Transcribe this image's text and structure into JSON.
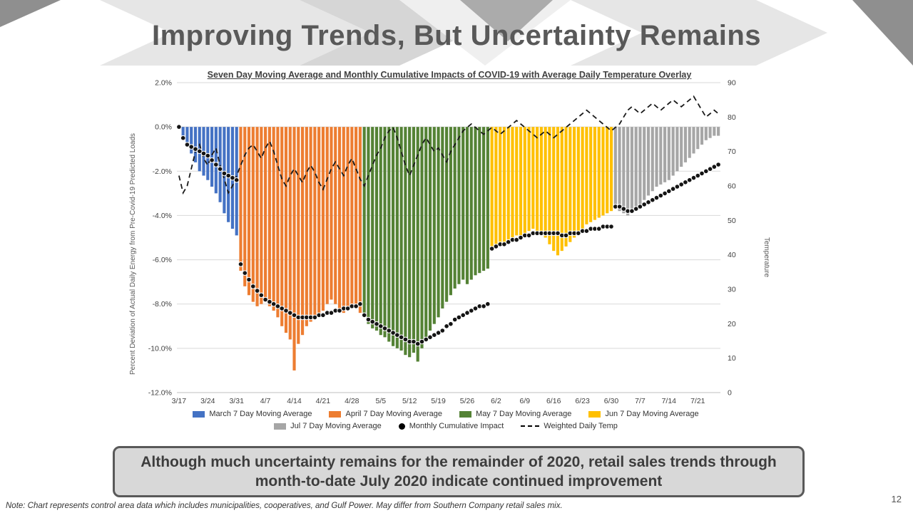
{
  "slide": {
    "title": "Improving Trends, But Uncertainty Remains",
    "callout": "Although much uncertainty remains for the remainder of 2020, retail sales trends through month-to-date July 2020 indicate continued improvement",
    "footnote": "Note: Chart represents control area data which includes municipalities, cooperatives, and Gulf Power.  May differ from Southern Company retail sales mix.",
    "page_number": "12"
  },
  "chart_data": {
    "type": "bar",
    "title": "Seven Day Moving Average and Monthly Cumulative Impacts of COVID-19 with Average Daily Temperature Overlay",
    "ylabel_left": "Percent Deviation of Actual Daily Energy from Pre-Covid-19 Predicted Loads",
    "ylabel_right": "Temperature",
    "ylim_left": [
      -12,
      2
    ],
    "ylim_right": [
      0,
      90
    ],
    "grid": true,
    "legend_position": "bottom",
    "y_ticks_left": [
      "2.0%",
      "0.0%",
      "-2.0%",
      "-4.0%",
      "-6.0%",
      "-8.0%",
      "-10.0%",
      "-12.0%"
    ],
    "y_ticks_left_values": [
      2,
      0,
      -2,
      -4,
      -6,
      -8,
      -10,
      -12
    ],
    "y_ticks_right_values": [
      90,
      80,
      70,
      60,
      50,
      40,
      30,
      20,
      10,
      0
    ],
    "x_tick_labels": [
      "3/17",
      "3/24",
      "3/31",
      "4/7",
      "4/14",
      "4/21",
      "4/28",
      "5/5",
      "5/12",
      "5/19",
      "5/26",
      "6/2",
      "6/9",
      "6/16",
      "6/23",
      "6/30",
      "7/7",
      "7/14",
      "7/21"
    ],
    "x_tick_interval_days": 7,
    "month_colors": {
      "3": "#4472C4",
      "4": "#ED7D31",
      "5": "#548235",
      "6": "#FFC000",
      "7": "#A6A6A6"
    },
    "legend": [
      {
        "label": "March 7 Day Moving Average",
        "type": "bar",
        "color": "#4472C4"
      },
      {
        "label": "April 7 Day Moving Average",
        "type": "bar",
        "color": "#ED7D31"
      },
      {
        "label": "May 7 Day Moving Average",
        "type": "bar",
        "color": "#548235"
      },
      {
        "label": "Jun 7 Day Moving Average",
        "type": "bar",
        "color": "#FFC000"
      },
      {
        "label": "Jul 7 Day Moving Average",
        "type": "bar",
        "color": "#A6A6A6"
      },
      {
        "label": "Monthly Cumulative Impact",
        "type": "dot",
        "color": "#000000"
      },
      {
        "label": "Weighted Daily Temp",
        "type": "dashed-line",
        "color": "#000000"
      }
    ],
    "dates": [
      "3/17",
      "3/18",
      "3/19",
      "3/20",
      "3/21",
      "3/22",
      "3/23",
      "3/24",
      "3/25",
      "3/26",
      "3/27",
      "3/28",
      "3/29",
      "3/30",
      "3/31",
      "4/1",
      "4/2",
      "4/3",
      "4/4",
      "4/5",
      "4/6",
      "4/7",
      "4/8",
      "4/9",
      "4/10",
      "4/11",
      "4/12",
      "4/13",
      "4/14",
      "4/15",
      "4/16",
      "4/17",
      "4/18",
      "4/19",
      "4/20",
      "4/21",
      "4/22",
      "4/23",
      "4/24",
      "4/25",
      "4/26",
      "4/27",
      "4/28",
      "4/29",
      "4/30",
      "5/1",
      "5/2",
      "5/3",
      "5/4",
      "5/5",
      "5/6",
      "5/7",
      "5/8",
      "5/9",
      "5/10",
      "5/11",
      "5/12",
      "5/13",
      "5/14",
      "5/15",
      "5/16",
      "5/17",
      "5/18",
      "5/19",
      "5/20",
      "5/21",
      "5/22",
      "5/23",
      "5/24",
      "5/25",
      "5/26",
      "5/27",
      "5/28",
      "5/29",
      "5/30",
      "5/31",
      "6/1",
      "6/2",
      "6/3",
      "6/4",
      "6/5",
      "6/6",
      "6/7",
      "6/8",
      "6/9",
      "6/10",
      "6/11",
      "6/12",
      "6/13",
      "6/14",
      "6/15",
      "6/16",
      "6/17",
      "6/18",
      "6/19",
      "6/20",
      "6/21",
      "6/22",
      "6/23",
      "6/24",
      "6/25",
      "6/26",
      "6/27",
      "6/28",
      "6/29",
      "6/30",
      "7/1",
      "7/2",
      "7/3",
      "7/4",
      "7/5",
      "7/6",
      "7/7",
      "7/8",
      "7/9",
      "7/10",
      "7/11",
      "7/12",
      "7/13",
      "7/14",
      "7/15",
      "7/16",
      "7/17",
      "7/18",
      "7/19",
      "7/20",
      "7/21",
      "7/22",
      "7/23",
      "7/24",
      "7/25",
      "7/26"
    ],
    "bar_values": [
      -0.1,
      -0.4,
      -0.8,
      -1.2,
      -1.6,
      -2.0,
      -2.2,
      -2.4,
      -2.7,
      -3.0,
      -3.4,
      -3.9,
      -4.3,
      -4.6,
      -4.9,
      -6.5,
      -7.2,
      -7.6,
      -7.9,
      -8.1,
      -8.0,
      -7.9,
      -8.1,
      -8.3,
      -8.6,
      -9.0,
      -9.3,
      -9.6,
      -11.0,
      -9.8,
      -9.4,
      -9.0,
      -8.8,
      -8.6,
      -8.5,
      -8.3,
      -8.0,
      -7.8,
      -8.0,
      -8.2,
      -8.4,
      -8.3,
      -8.1,
      -8.2,
      -8.4,
      -8.6,
      -8.9,
      -9.1,
      -9.2,
      -9.4,
      -9.5,
      -9.7,
      -9.9,
      -10.0,
      -10.1,
      -10.3,
      -10.4,
      -10.2,
      -10.6,
      -10.0,
      -9.6,
      -9.2,
      -8.9,
      -8.6,
      -8.2,
      -7.9,
      -7.6,
      -7.3,
      -7.1,
      -6.9,
      -7.1,
      -6.9,
      -6.7,
      -6.6,
      -6.5,
      -6.4,
      -5.4,
      -5.5,
      -5.3,
      -5.2,
      -5.1,
      -5.0,
      -4.9,
      -4.9,
      -4.8,
      -4.7,
      -4.6,
      -4.7,
      -4.8,
      -5.0,
      -5.3,
      -5.6,
      -5.8,
      -5.6,
      -5.4,
      -5.2,
      -5.0,
      -4.8,
      -4.6,
      -4.4,
      -4.3,
      -4.2,
      -4.1,
      -4.0,
      -3.9,
      -3.8,
      -3.7,
      -3.8,
      -3.9,
      -4.0,
      -3.9,
      -3.7,
      -3.5,
      -3.3,
      -3.1,
      -2.9,
      -2.7,
      -2.6,
      -2.5,
      -2.4,
      -2.2,
      -2.0,
      -1.8,
      -1.6,
      -1.4,
      -1.2,
      -1.0,
      -0.8,
      -0.6,
      -0.5,
      -0.4,
      -0.4
    ],
    "cumulative_values": [
      0.0,
      -0.5,
      -0.8,
      -0.9,
      -1.0,
      -1.1,
      -1.2,
      -1.3,
      -1.5,
      -1.7,
      -1.9,
      -2.1,
      -2.2,
      -2.3,
      -2.4,
      -6.2,
      -6.6,
      -6.9,
      -7.2,
      -7.4,
      -7.6,
      -7.8,
      -7.9,
      -8.0,
      -8.1,
      -8.2,
      -8.3,
      -8.4,
      -8.5,
      -8.6,
      -8.6,
      -8.6,
      -8.6,
      -8.6,
      -8.5,
      -8.5,
      -8.4,
      -8.4,
      -8.3,
      -8.3,
      -8.2,
      -8.2,
      -8.1,
      -8.1,
      -8.0,
      -8.5,
      -8.7,
      -8.8,
      -8.9,
      -9.0,
      -9.1,
      -9.2,
      -9.3,
      -9.4,
      -9.5,
      -9.6,
      -9.7,
      -9.7,
      -9.8,
      -9.7,
      -9.6,
      -9.5,
      -9.4,
      -9.3,
      -9.2,
      -9.0,
      -8.9,
      -8.7,
      -8.6,
      -8.5,
      -8.4,
      -8.3,
      -8.2,
      -8.1,
      -8.1,
      -8.0,
      -5.5,
      -5.4,
      -5.3,
      -5.3,
      -5.2,
      -5.1,
      -5.1,
      -5.0,
      -4.9,
      -4.9,
      -4.8,
      -4.8,
      -4.8,
      -4.8,
      -4.8,
      -4.8,
      -4.8,
      -4.9,
      -4.9,
      -4.8,
      -4.8,
      -4.8,
      -4.7,
      -4.7,
      -4.6,
      -4.6,
      -4.6,
      -4.5,
      -4.5,
      -4.5,
      -3.6,
      -3.6,
      -3.7,
      -3.8,
      -3.8,
      -3.7,
      -3.6,
      -3.5,
      -3.4,
      -3.3,
      -3.2,
      -3.1,
      -3.0,
      -2.9,
      -2.8,
      -2.7,
      -2.6,
      -2.5,
      -2.4,
      -2.3,
      -2.2,
      -2.1,
      -2.0,
      -1.9,
      -1.8,
      -1.7
    ],
    "temp_values": [
      63,
      58,
      60,
      65,
      70,
      72,
      68,
      66,
      69,
      71,
      66,
      62,
      58,
      60,
      63,
      66,
      69,
      71,
      72,
      70,
      68,
      71,
      73,
      70,
      66,
      62,
      60,
      63,
      65,
      63,
      61,
      64,
      66,
      64,
      61,
      59,
      62,
      65,
      67,
      65,
      63,
      66,
      68,
      65,
      62,
      60,
      63,
      66,
      69,
      71,
      74,
      76,
      77,
      74,
      70,
      66,
      63,
      66,
      69,
      72,
      74,
      72,
      70,
      71,
      69,
      67,
      70,
      72,
      74,
      76,
      77,
      78,
      77,
      76,
      75,
      76,
      77,
      76,
      75,
      76,
      77,
      78,
      79,
      78,
      77,
      76,
      75,
      74,
      75,
      76,
      75,
      74,
      75,
      76,
      77,
      78,
      79,
      80,
      81,
      82,
      81,
      80,
      79,
      78,
      77,
      76,
      77,
      78,
      80,
      82,
      83,
      82,
      81,
      82,
      83,
      84,
      83,
      82,
      83,
      84,
      85,
      84,
      83,
      84,
      85,
      86,
      84,
      82,
      80,
      81,
      82,
      81
    ]
  }
}
